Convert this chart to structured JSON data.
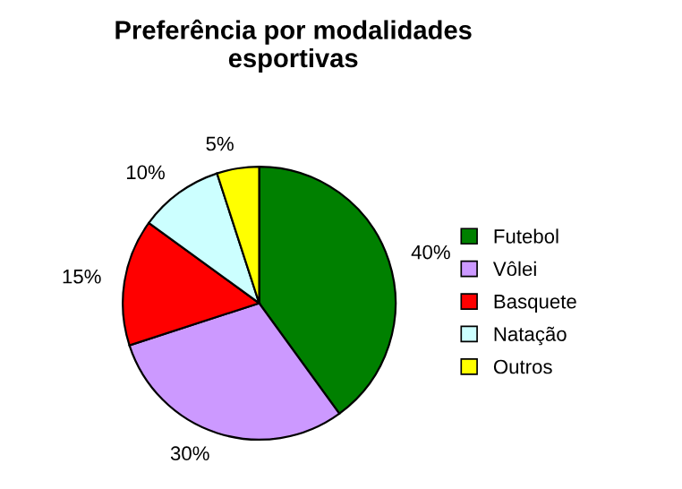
{
  "chart_data": {
    "type": "pie",
    "title": "Preferência por modalidades\nesportivas",
    "categories": [
      "Futebol",
      "Vôlei",
      "Basquete",
      "Natação",
      "Outros"
    ],
    "values": [
      40,
      30,
      15,
      10,
      5
    ],
    "colors": [
      "#008000",
      "#cc99ff",
      "#ff0000",
      "#ccffff",
      "#ffff00"
    ],
    "value_labels": [
      "40%",
      "30%",
      "15%",
      "10%",
      "5%"
    ],
    "legend": "right"
  }
}
